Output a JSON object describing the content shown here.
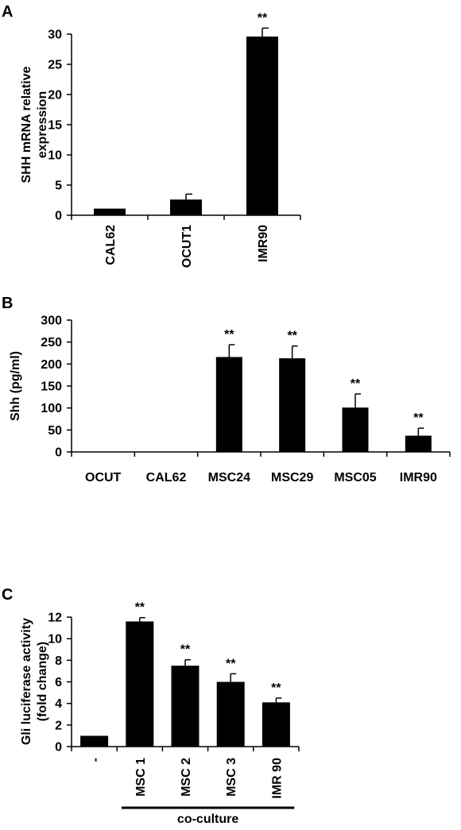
{
  "chart_data": [
    {
      "panel": "A",
      "type": "bar",
      "categories": [
        "CAL62",
        "OCUT1",
        "IMR90"
      ],
      "values": [
        1.1,
        2.6,
        29.6
      ],
      "errors": [
        0,
        0.9,
        1.4
      ],
      "significance": [
        "",
        "",
        "**"
      ],
      "ylabel": "SHH mRNA relative expression",
      "ylabel_lines": [
        "SHH mRNA relative",
        "expression"
      ],
      "ylim": [
        0,
        30
      ],
      "yticks": [
        0,
        5,
        10,
        15,
        20,
        25,
        30
      ],
      "category_label_rotation": "vertical",
      "grid": false
    },
    {
      "panel": "B",
      "type": "bar",
      "categories": [
        "OCUT",
        "CAL62",
        "MSC24",
        "MSC29",
        "MSC05",
        "IMR90"
      ],
      "values": [
        0,
        0,
        216,
        213,
        101,
        37
      ],
      "errors": [
        0,
        0,
        28,
        28,
        31,
        17
      ],
      "significance": [
        "",
        "",
        "**",
        "**",
        "**",
        "**"
      ],
      "ylabel": "Shh (pg/ml)",
      "ylim": [
        0,
        300
      ],
      "yticks": [
        0,
        50,
        100,
        150,
        200,
        250,
        300
      ],
      "category_label_rotation": "horizontal",
      "grid": false
    },
    {
      "panel": "C",
      "type": "bar",
      "categories": [
        "-",
        "MSC 1",
        "MSC 2",
        "MSC 3",
        "IMR 90"
      ],
      "values": [
        1.0,
        11.6,
        7.5,
        6.0,
        4.1
      ],
      "errors": [
        0,
        0.35,
        0.55,
        0.75,
        0.4
      ],
      "significance": [
        "",
        "**",
        "**",
        "**",
        "**"
      ],
      "ylabel": "Gli luciferase activity (fold change)",
      "ylabel_lines": [
        "Gli luciferase activity",
        "(fold change)"
      ],
      "ylim": [
        0,
        12
      ],
      "yticks": [
        0,
        2,
        4,
        6,
        8,
        10,
        12
      ],
      "category_label_rotation": "vertical",
      "group_label": "co-culture",
      "grid": false
    }
  ]
}
